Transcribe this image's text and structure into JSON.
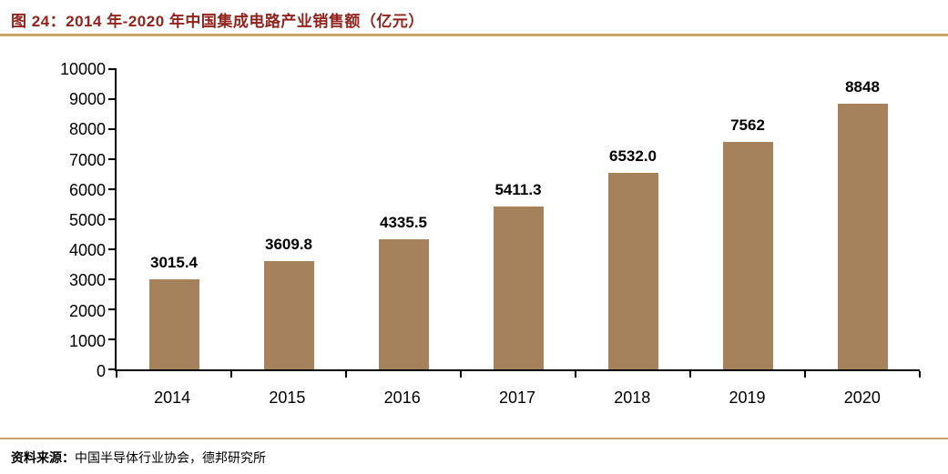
{
  "header": {
    "title": "图 24：2014 年-2020 年中国集成电路产业销售额（亿元）"
  },
  "footer": {
    "source_label": "资料来源：",
    "source_text": "中国半导体行业协会，德邦研究所"
  },
  "colors": {
    "title": "#92231c",
    "bar": "#a5825b",
    "divider": "#c9a36a",
    "axis": "#000000",
    "text": "#000000"
  },
  "chart_data": {
    "type": "bar",
    "title": "2014 年-2020 年中国集成电路产业销售额（亿元）",
    "categories": [
      "2014",
      "2015",
      "2016",
      "2017",
      "2018",
      "2019",
      "2020"
    ],
    "values": [
      3015.4,
      3609.8,
      4335.5,
      5411.3,
      6532.0,
      7562,
      8848
    ],
    "labels": [
      "3015.4",
      "3609.8",
      "4335.5",
      "5411.3",
      "6532.0",
      "7562",
      "8848"
    ],
    "xlabel": "",
    "ylabel": "",
    "ylim": [
      0,
      10000
    ],
    "ytick_step": 1000,
    "grid": false,
    "legend": false,
    "bar_color": "#a5825b"
  }
}
